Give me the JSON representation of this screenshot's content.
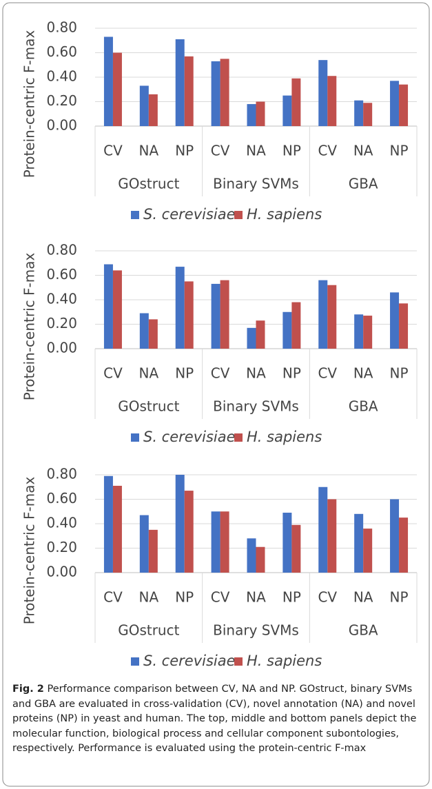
{
  "chart_data": [
    {
      "type": "bar",
      "y_label": "Protein-centric F-max",
      "categories": [
        "CV",
        "NA",
        "NP",
        "CV",
        "NA",
        "NP",
        "CV",
        "NA",
        "NP"
      ],
      "groups": [
        "GOstruct",
        "Binary SVMs",
        "GBA"
      ],
      "series": [
        {
          "name": "S. cerevisiae",
          "color": "#4472c4",
          "values": [
            0.73,
            0.33,
            0.71,
            0.53,
            0.18,
            0.25,
            0.54,
            0.21,
            0.37
          ]
        },
        {
          "name": "H. sapiens",
          "color": "#c0504d",
          "values": [
            0.6,
            0.26,
            0.57,
            0.55,
            0.2,
            0.39,
            0.41,
            0.19,
            0.34
          ]
        }
      ],
      "ylim": [
        0,
        0.8
      ],
      "yticks": [
        {
          "value": 0,
          "label": "0.00"
        },
        {
          "value": 0.2,
          "label": "0.20"
        },
        {
          "value": 0.4,
          "label": "0.40"
        },
        {
          "value": 0.6,
          "label": "0.60"
        },
        {
          "value": 0.8,
          "label": "0.80"
        }
      ],
      "grid": true,
      "legend": "bottom"
    },
    {
      "type": "bar",
      "y_label": "Protein-centric F-max",
      "categories": [
        "CV",
        "NA",
        "NP",
        "CV",
        "NA",
        "NP",
        "CV",
        "NA",
        "NP"
      ],
      "groups": [
        "GOstruct",
        "Binary SVMs",
        "GBA"
      ],
      "series": [
        {
          "name": "S. cerevisiae",
          "color": "#4472c4",
          "values": [
            0.69,
            0.29,
            0.67,
            0.53,
            0.17,
            0.3,
            0.56,
            0.28,
            0.46
          ]
        },
        {
          "name": "H. sapiens",
          "color": "#c0504d",
          "values": [
            0.64,
            0.24,
            0.55,
            0.56,
            0.23,
            0.38,
            0.52,
            0.27,
            0.37
          ]
        }
      ],
      "ylim": [
        0,
        0.8
      ],
      "yticks": [
        {
          "value": 0,
          "label": "0.00"
        },
        {
          "value": 0.2,
          "label": "0.20"
        },
        {
          "value": 0.4,
          "label": "0.40"
        },
        {
          "value": 0.6,
          "label": "0.60"
        },
        {
          "value": 0.8,
          "label": "0.80"
        }
      ],
      "grid": true,
      "legend": "bottom"
    },
    {
      "type": "bar",
      "y_label": "Protein-centric F-max",
      "categories": [
        "CV",
        "NA",
        "NP",
        "CV",
        "NA",
        "NP",
        "CV",
        "NA",
        "NP"
      ],
      "groups": [
        "GOstruct",
        "Binary SVMs",
        "GBA"
      ],
      "series": [
        {
          "name": "S. cerevisiae",
          "color": "#4472c4",
          "values": [
            0.79,
            0.47,
            0.8,
            0.5,
            0.28,
            0.49,
            0.7,
            0.48,
            0.6
          ]
        },
        {
          "name": "H. sapiens",
          "color": "#c0504d",
          "values": [
            0.71,
            0.35,
            0.67,
            0.5,
            0.21,
            0.39,
            0.6,
            0.36,
            0.45
          ]
        }
      ],
      "ylim": [
        0,
        0.8
      ],
      "yticks": [
        {
          "value": 0,
          "label": "0.00"
        },
        {
          "value": 0.2,
          "label": "0.20"
        },
        {
          "value": 0.4,
          "label": "0.40"
        },
        {
          "value": 0.6,
          "label": "0.60"
        },
        {
          "value": 0.8,
          "label": "0.80"
        }
      ],
      "grid": true,
      "legend": "bottom"
    }
  ],
  "caption": {
    "label": "Fig. 2",
    "text": "Performance comparison between CV, NA and NP. GOstruct, binary SVMs and GBA are evaluated in cross-validation (CV), novel annotation (NA) and novel proteins (NP) in yeast and human. The top, middle and bottom panels depict the molecular function, biological process and cellular component subontologies, respectively. Performance is evaluated using the protein-centric F-max"
  }
}
